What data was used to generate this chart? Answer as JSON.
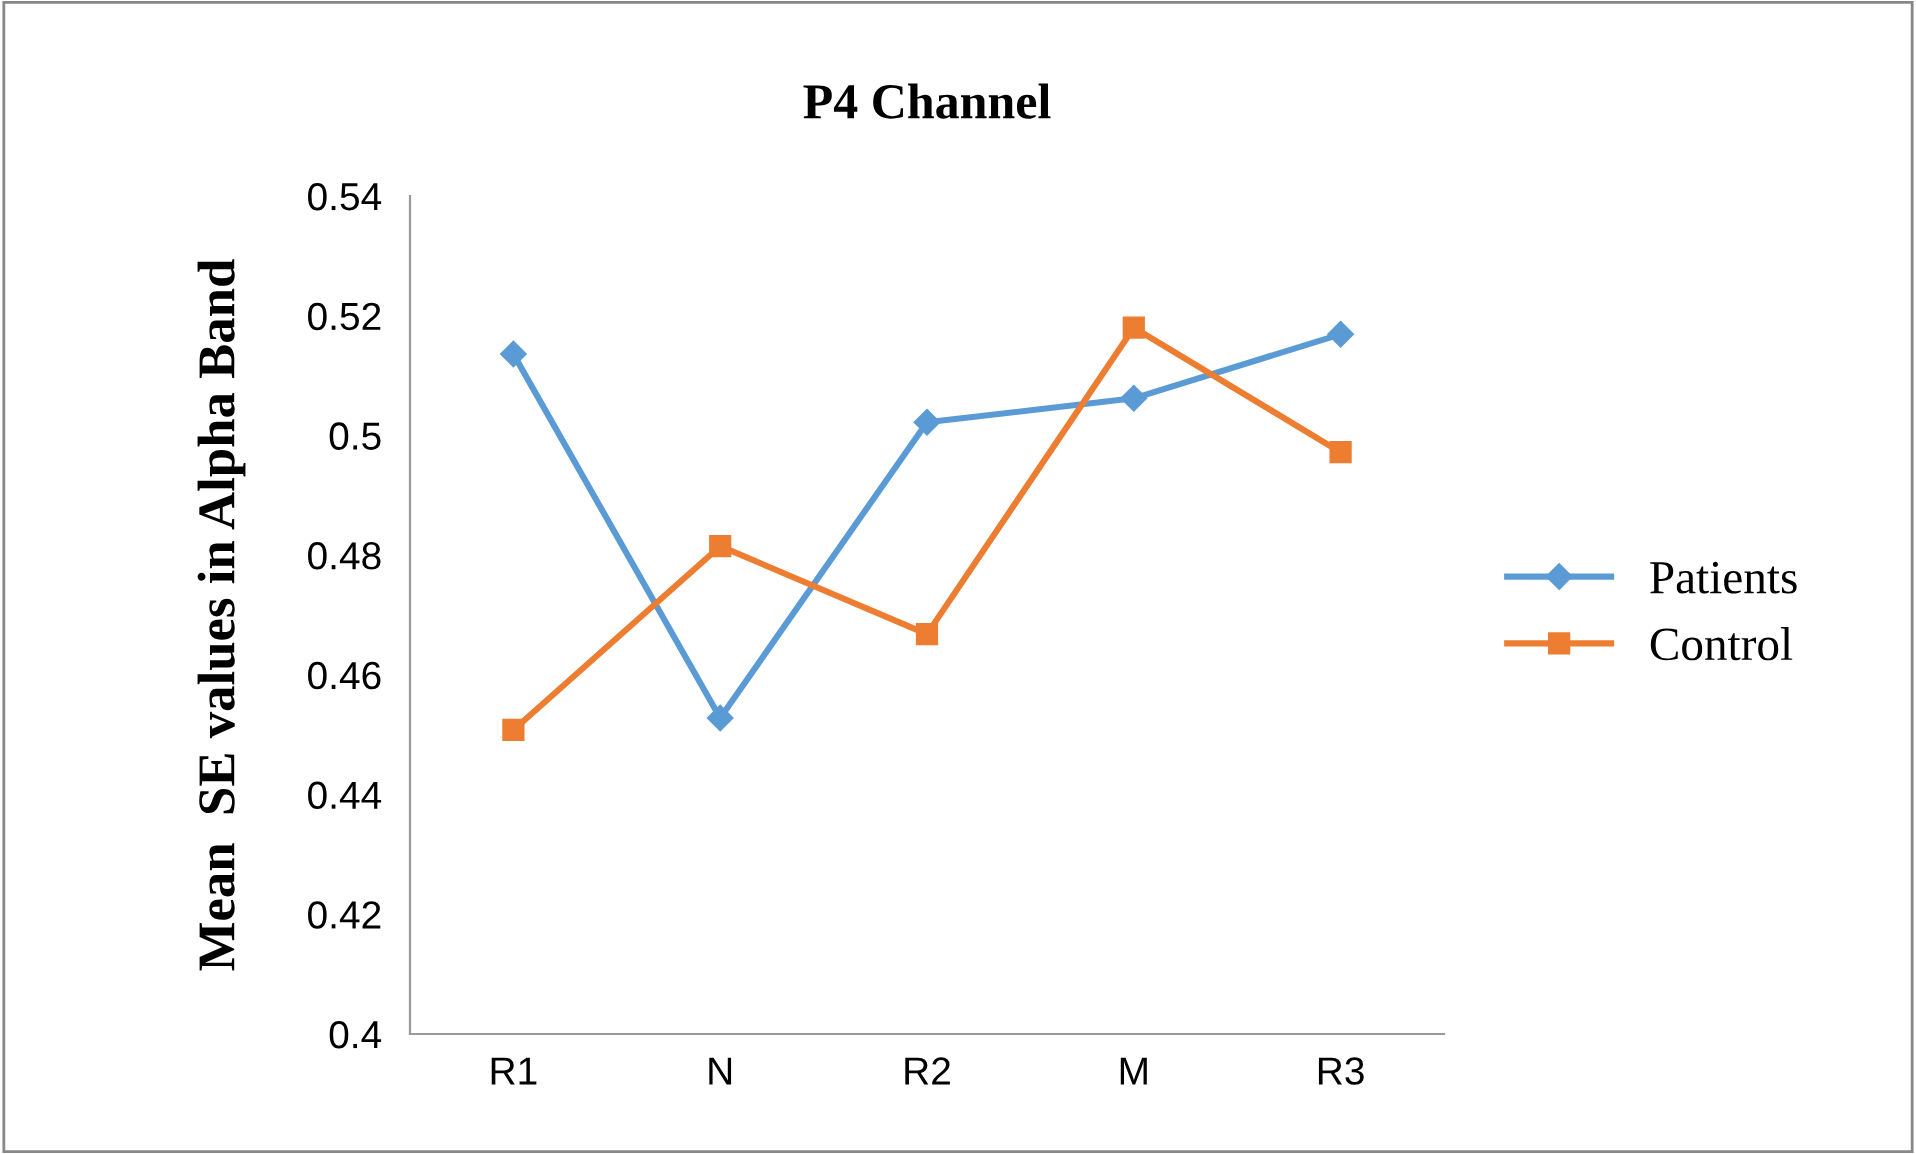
{
  "chart_data": {
    "type": "line",
    "title": "P4 Channel",
    "ylabel": "Mean  SE values in Alpha Band",
    "categories": [
      "R1",
      "N",
      "R2",
      "M",
      "R3"
    ],
    "series": [
      {
        "name": "Patients",
        "color": "#5b9bd5",
        "marker": "diamond",
        "values": [
          0.5136,
          0.4528,
          0.5022,
          0.5062,
          0.5169
        ]
      },
      {
        "name": "Control",
        "color": "#ed7d31",
        "marker": "square",
        "values": [
          0.4508,
          0.4815,
          0.4668,
          0.518,
          0.4972
        ]
      }
    ],
    "ylim": [
      0.4,
      0.54
    ],
    "yticks": [
      0.4,
      0.42,
      0.44,
      0.46,
      0.48,
      0.5,
      0.52,
      0.54
    ],
    "grid": false,
    "legend": "right"
  }
}
